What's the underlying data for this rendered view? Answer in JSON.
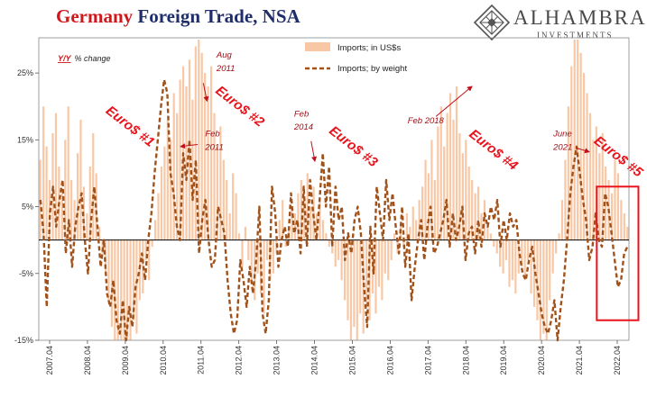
{
  "header": {
    "title_accent": "Germany",
    "title_rest": " Foreign Trade, NSA",
    "logo_name": "ALHAMBRA",
    "logo_sub": "INVESTMENTS"
  },
  "chart_data": {
    "type": "bar",
    "title": "Germany Foreign Trade, NSA",
    "units_prefix": "Y/Y",
    "units_suffix": "% change",
    "ylim": [
      -15,
      30
    ],
    "yticks": [
      25,
      15,
      5,
      -5,
      -15
    ],
    "ytick_labels": [
      "25%",
      "15%",
      "5%",
      "-5%",
      "-15%"
    ],
    "x_start": "2007.04",
    "x_end": "2022.04",
    "xtick_labels": [
      "2007.04",
      "2008.04",
      "2009.04",
      "2010.04",
      "2011.04",
      "2012.04",
      "2013.04",
      "2014.04",
      "2015.04",
      "2016.04",
      "2017.04",
      "2018.04",
      "2019.04",
      "2020.04",
      "2021.04",
      "2022.04"
    ],
    "legend_position": "top-center",
    "series": [
      {
        "name": "Imports; in US$s",
        "type": "bar",
        "color": "#f8c8a6",
        "values": [
          12,
          20,
          14,
          9,
          16,
          19,
          11,
          7,
          15,
          20,
          9,
          6,
          13,
          18,
          8,
          4,
          11,
          16,
          10,
          2,
          -2,
          -5,
          -9,
          -13,
          -15,
          -15,
          -15,
          -15,
          -15,
          -15,
          -12,
          -14,
          -9,
          -8,
          -3,
          -6,
          -1,
          3,
          7,
          11,
          14,
          18,
          15,
          22,
          19,
          24,
          26,
          23,
          27,
          21,
          29,
          30,
          28,
          25,
          23,
          26,
          19,
          14,
          17,
          12,
          9,
          4,
          10,
          7,
          1,
          -4,
          2,
          -3,
          -6,
          -9,
          -5,
          -8,
          -11,
          -3,
          -6,
          -5,
          -2,
          3,
          6,
          -1,
          2,
          5,
          4,
          7,
          9,
          6,
          10,
          5,
          8,
          4,
          6,
          3,
          1,
          -1,
          -2,
          -4,
          -3,
          -6,
          -9,
          -12,
          -15,
          -13,
          -15,
          -11,
          -14,
          -10,
          -12,
          -8,
          -11,
          -7,
          -9,
          -5,
          -6,
          -3,
          1,
          -2,
          2,
          -1,
          4,
          2,
          5,
          3,
          6,
          8,
          12,
          10,
          15,
          9,
          17,
          20,
          14,
          19,
          22,
          18,
          23,
          16,
          13,
          15,
          11,
          9,
          7,
          8,
          4,
          6,
          2,
          1,
          -1,
          -2,
          -4,
          -5,
          -3,
          -7,
          -6,
          -8,
          -5,
          -4,
          -6,
          -3,
          -8,
          -10,
          -12,
          -15,
          -14,
          -15,
          -9,
          -5,
          -2,
          1,
          6,
          12,
          20,
          26,
          30,
          30,
          28,
          25,
          22,
          19,
          15,
          17,
          13,
          16,
          11,
          9,
          7,
          12,
          10,
          6,
          4,
          2
        ],
        "fill": true
      },
      {
        "name": "Imports; by weight",
        "type": "line",
        "style": "dashed",
        "color": "#a0521a",
        "values": [
          6,
          1,
          -10,
          4,
          8,
          2,
          6,
          9,
          -2,
          3,
          -4,
          2,
          5,
          7,
          0,
          -5,
          3,
          8,
          2,
          -4,
          0,
          -8,
          -10,
          -6,
          -12,
          -14,
          -9,
          -15,
          -10,
          -13,
          -7,
          -5,
          -2,
          -6,
          0,
          4,
          10,
          15,
          20,
          24,
          22,
          10,
          7,
          2,
          0,
          13,
          9,
          15,
          6,
          12,
          -2,
          3,
          6,
          0,
          -4,
          -3,
          5,
          3,
          1,
          -6,
          -11,
          -14,
          -12,
          -3,
          -6,
          -10,
          -4,
          -8,
          -3,
          5,
          -11,
          -14,
          -9,
          8,
          4,
          -4,
          0,
          2,
          -1,
          7,
          1,
          3,
          -2,
          8,
          -1,
          9,
          4,
          0,
          6,
          13,
          5,
          11,
          -1,
          8,
          3,
          5,
          -3,
          1,
          -2,
          3,
          5,
          1,
          -7,
          -13,
          2,
          -5,
          8,
          4,
          0,
          9,
          3,
          7,
          2,
          -2,
          5,
          -4,
          1,
          -9,
          -4,
          0,
          3,
          -3,
          2,
          5,
          -2,
          -1,
          1,
          3,
          6,
          -1,
          4,
          0,
          2,
          5,
          -3,
          1,
          2,
          -2,
          3,
          -1,
          4,
          2,
          5,
          3,
          6,
          -1,
          3,
          0,
          4,
          2,
          3,
          -2,
          -5,
          -6,
          -3,
          -1,
          -5,
          -8,
          -11,
          -13,
          -14,
          -12,
          -9,
          -15,
          -10,
          -6,
          0,
          7,
          11,
          14,
          10,
          6,
          3,
          -3,
          -1,
          4,
          0,
          -1,
          7,
          5,
          1,
          -3,
          -7,
          -6,
          -2,
          -1
        ]
      }
    ],
    "annotations": [
      {
        "text": "Aug",
        "x": 2011.45,
        "y": 27.3
      },
      {
        "text": "2011",
        "x": 2011.45,
        "y": 25.3
      },
      {
        "text": "Feb",
        "x": 2011.15,
        "y": 15.5
      },
      {
        "text": "2011",
        "x": 2011.15,
        "y": 13.5
      },
      {
        "text": "Feb",
        "x": 2013.5,
        "y": 18.5
      },
      {
        "text": "2014",
        "x": 2013.5,
        "y": 16.5
      },
      {
        "text": "Feb 2018",
        "x": 2016.5,
        "y": 17.5
      },
      {
        "text": "June",
        "x": 2020.35,
        "y": 15.5
      },
      {
        "text": "2021",
        "x": 2020.35,
        "y": 13.5
      }
    ],
    "arrows": [
      {
        "from": [
          2011.1,
          23.5
        ],
        "to": [
          2011.2,
          20.8
        ]
      },
      {
        "from": [
          2010.95,
          14.3
        ],
        "to": [
          2010.5,
          14
        ]
      },
      {
        "from": [
          2013.95,
          14.8
        ],
        "to": [
          2014.05,
          11.8
        ]
      },
      {
        "from": [
          2017.25,
          18.5
        ],
        "to": [
          2018.2,
          23
        ]
      },
      {
        "from": [
          2020.95,
          13.8
        ],
        "to": [
          2021.3,
          13.2
        ]
      }
    ],
    "episode_labels": [
      {
        "text": "Euro$ #1",
        "x": 2009.1,
        "y": 16.5
      },
      {
        "text": "Euro$ #2",
        "x": 2012.0,
        "y": 19.5
      },
      {
        "text": "Euro$ #3",
        "x": 2015.0,
        "y": 13.5
      },
      {
        "text": "Euro$ #4",
        "x": 2018.7,
        "y": 13.0
      },
      {
        "text": "Euro$ #5",
        "x": 2022.0,
        "y": 12.0
      }
    ],
    "highlight_box": {
      "x0": 2021.5,
      "x1": 2022.6,
      "y0": -12,
      "y1": 8,
      "color": "#e8131b"
    }
  }
}
